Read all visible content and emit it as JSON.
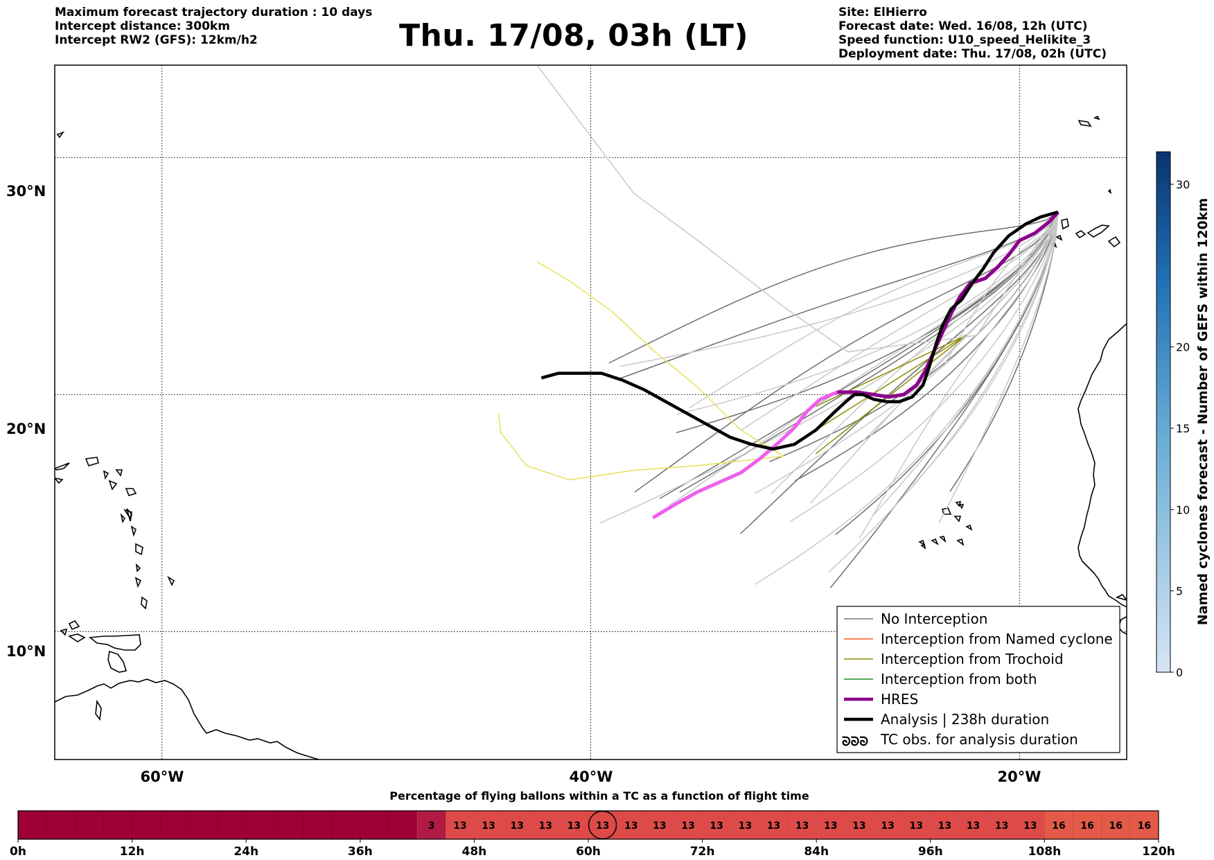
{
  "header_left": [
    "Maximum forecast trajectory duration : 10 days",
    "Intercept distance: 300km",
    "Intercept RW2 (GFS):  12km/h2"
  ],
  "title": "Thu. 17/08, 03h (LT)",
  "header_right": [
    "Site: ElHierro",
    "Forecast date: Wed. 16/08, 12h (UTC)",
    "Speed function: U10_speed_Helikite_3",
    "Deployment date: Thu. 17/08, 02h (UTC)"
  ],
  "map": {
    "lat_labels": [
      "30°N",
      "20°N",
      "10°N"
    ],
    "lon_labels": [
      "60°W",
      "40°W",
      "20°W"
    ],
    "lon_range": [
      -65,
      -15
    ],
    "lat_range": [
      4.6,
      33.9
    ],
    "gridlines": true
  },
  "legend": {
    "placement": "lower-right",
    "entries": [
      {
        "label": "No Interception",
        "color": "#777777"
      },
      {
        "label": "Interception from Named cyclone",
        "color": "#ff5a1f"
      },
      {
        "label": "Interception from Trochoid",
        "color": "#8a8a00"
      },
      {
        "label": "Interception from both",
        "color": "#228b22"
      },
      {
        "label": "HRES",
        "color": "#8b008b"
      },
      {
        "label": "Analysis | 238h duration",
        "color": "#000000"
      },
      {
        "label": "TC obs. for analysis duration",
        "color": "#000000",
        "icon": "cyclone-symbols-icon"
      }
    ]
  },
  "colorbar": {
    "label": "Named cyclones forecast - Number of GEFS within 120km",
    "range": [
      0,
      32
    ],
    "ticks": [
      "0",
      "5",
      "10",
      "15",
      "20",
      "30"
    ],
    "tick_values": [
      0,
      5,
      10,
      15,
      20,
      30
    ],
    "color_low": "#d6e4f4",
    "color_high": "#0a3470"
  },
  "timeline": {
    "title": "Percentage of flying ballons within a TC as a function of flight time",
    "tick_labels": [
      "0h",
      "12h",
      "24h",
      "36h",
      "48h",
      "60h",
      "72h",
      "84h",
      "96h",
      "108h",
      "120h"
    ],
    "dark_color": "#9e0038",
    "cells": [
      {
        "hours": [
          42,
          45
        ],
        "value": "3",
        "color": "#b01a44"
      },
      {
        "hours": [
          45,
          48
        ],
        "value": "13",
        "color": "#dd4a48"
      },
      {
        "hours": [
          48,
          51
        ],
        "value": "13",
        "color": "#dd4a48"
      },
      {
        "hours": [
          51,
          54
        ],
        "value": "13",
        "color": "#dd4a48"
      },
      {
        "hours": [
          54,
          57
        ],
        "value": "13",
        "color": "#dd4a48"
      },
      {
        "hours": [
          57,
          60
        ],
        "value": "13",
        "color": "#dd4a48"
      },
      {
        "hours": [
          60,
          63
        ],
        "value": "13",
        "color": "#dd4a48",
        "current": true
      },
      {
        "hours": [
          63,
          66
        ],
        "value": "13",
        "color": "#dd4a48"
      },
      {
        "hours": [
          66,
          69
        ],
        "value": "13",
        "color": "#dd4a48"
      },
      {
        "hours": [
          69,
          72
        ],
        "value": "13",
        "color": "#dd4a48"
      },
      {
        "hours": [
          72,
          75
        ],
        "value": "13",
        "color": "#dd4a48"
      },
      {
        "hours": [
          75,
          78
        ],
        "value": "13",
        "color": "#dd4a48"
      },
      {
        "hours": [
          78,
          81
        ],
        "value": "13",
        "color": "#dd4a48"
      },
      {
        "hours": [
          81,
          84
        ],
        "value": "13",
        "color": "#dd4a48"
      },
      {
        "hours": [
          84,
          87
        ],
        "value": "13",
        "color": "#dd4a48"
      },
      {
        "hours": [
          87,
          90
        ],
        "value": "13",
        "color": "#dd4a48"
      },
      {
        "hours": [
          90,
          93
        ],
        "value": "13",
        "color": "#dd4a48"
      },
      {
        "hours": [
          93,
          96
        ],
        "value": "13",
        "color": "#dd4a48"
      },
      {
        "hours": [
          96,
          99
        ],
        "value": "13",
        "color": "#dd4a48"
      },
      {
        "hours": [
          99,
          102
        ],
        "value": "13",
        "color": "#dd4a48"
      },
      {
        "hours": [
          102,
          105
        ],
        "value": "13",
        "color": "#dd4a48"
      },
      {
        "hours": [
          105,
          108
        ],
        "value": "13",
        "color": "#dd4a48"
      },
      {
        "hours": [
          108,
          111
        ],
        "value": "16",
        "color": "#e35a48"
      },
      {
        "hours": [
          111,
          114
        ],
        "value": "16",
        "color": "#e35a48"
      },
      {
        "hours": [
          114,
          117
        ],
        "value": "16",
        "color": "#e35a48"
      },
      {
        "hours": [
          117,
          120
        ],
        "value": "16",
        "color": "#e35a48"
      }
    ]
  },
  "trajectories": {
    "analysis": [
      [
        -42.3,
        20.7
      ],
      [
        -41.5,
        20.9
      ],
      [
        -40.5,
        20.9
      ],
      [
        -39.5,
        20.9
      ],
      [
        -38.5,
        20.6
      ],
      [
        -37.5,
        20.2
      ],
      [
        -36.5,
        19.7
      ],
      [
        -35.5,
        19.2
      ],
      [
        -34.5,
        18.7
      ],
      [
        -33.5,
        18.2
      ],
      [
        -32.5,
        17.9
      ],
      [
        -31.5,
        17.7
      ],
      [
        -30.5,
        17.9
      ],
      [
        -29.5,
        18.5
      ],
      [
        -28.7,
        19.2
      ],
      [
        -28.1,
        19.7
      ],
      [
        -27.7,
        20.0
      ],
      [
        -27.3,
        20.0
      ],
      [
        -26.8,
        19.8
      ],
      [
        -26.2,
        19.7
      ],
      [
        -25.6,
        19.7
      ],
      [
        -25.0,
        19.9
      ],
      [
        -24.5,
        20.4
      ],
      [
        -24.2,
        21.2
      ],
      [
        -23.9,
        22.1
      ],
      [
        -23.6,
        22.9
      ],
      [
        -23.2,
        23.6
      ],
      [
        -22.7,
        24.0
      ],
      [
        -22.2,
        24.7
      ],
      [
        -21.7,
        25.3
      ],
      [
        -21.2,
        26.0
      ],
      [
        -20.5,
        26.7
      ],
      [
        -19.7,
        27.2
      ],
      [
        -19.0,
        27.5
      ],
      [
        -18.2,
        27.7
      ]
    ],
    "hres": [
      [
        -37.1,
        14.8
      ],
      [
        -36.0,
        15.4
      ],
      [
        -35.0,
        15.9
      ],
      [
        -34.0,
        16.3
      ],
      [
        -33.0,
        16.7
      ],
      [
        -32.1,
        17.3
      ],
      [
        -31.2,
        18.0
      ],
      [
        -30.5,
        18.6
      ],
      [
        -29.9,
        19.3
      ],
      [
        -29.3,
        19.8
      ],
      [
        -28.5,
        20.1
      ],
      [
        -27.6,
        20.1
      ],
      [
        -26.8,
        20.0
      ],
      [
        -26.1,
        19.9
      ],
      [
        -25.4,
        20.0
      ],
      [
        -24.8,
        20.4
      ],
      [
        -24.4,
        21.0
      ],
      [
        -24.0,
        21.8
      ],
      [
        -23.6,
        22.6
      ],
      [
        -23.2,
        23.4
      ],
      [
        -22.8,
        24.1
      ],
      [
        -22.3,
        24.7
      ],
      [
        -21.6,
        24.9
      ],
      [
        -21.0,
        25.4
      ],
      [
        -20.5,
        25.9
      ],
      [
        -20.0,
        26.5
      ],
      [
        -19.3,
        26.8
      ],
      [
        -18.6,
        27.3
      ],
      [
        -18.2,
        27.7
      ]
    ],
    "ensemble_count": 30
  }
}
